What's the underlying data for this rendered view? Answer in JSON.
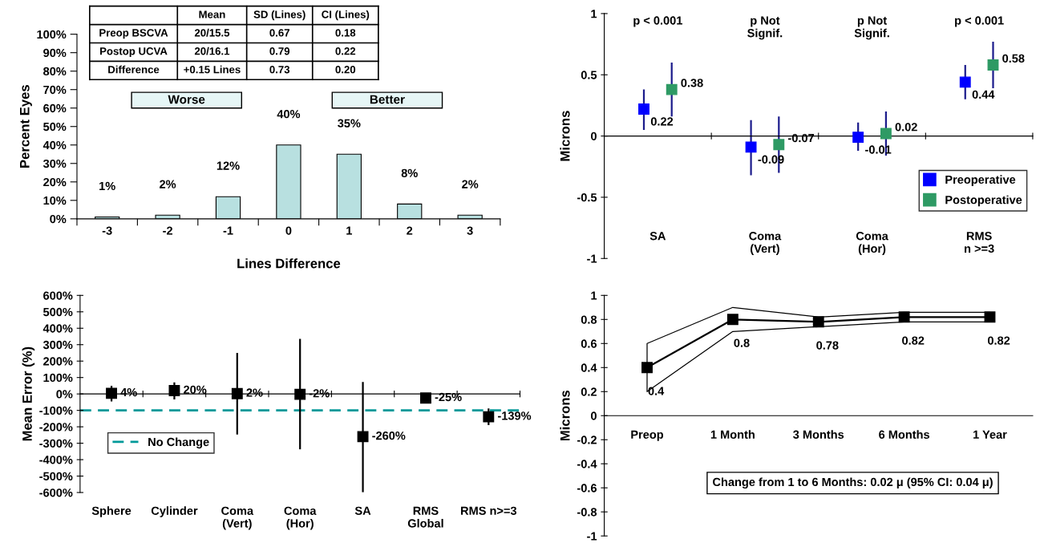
{
  "chart_data": [
    {
      "type": "bar",
      "categories": [
        "-3",
        "-2",
        "-1",
        "0",
        "1",
        "2",
        "3"
      ],
      "values": [
        1,
        2,
        12,
        40,
        35,
        8,
        2
      ],
      "color": "#b8e0e0",
      "value_labels": [
        "1%",
        "2%",
        "12%",
        "40%",
        "35%",
        "8%",
        "2%"
      ],
      "ylim": [
        0,
        100
      ],
      "yticks": [
        {
          "value": 0,
          "label": "0%"
        },
        {
          "value": 10,
          "label": "10%"
        },
        {
          "value": 20,
          "label": "20%"
        },
        {
          "value": 30,
          "label": "30%"
        },
        {
          "value": 40,
          "label": "40%"
        },
        {
          "value": 50,
          "label": "50%"
        },
        {
          "value": 60,
          "label": "60%"
        },
        {
          "value": 70,
          "label": "70%"
        },
        {
          "value": 80,
          "label": "80%"
        },
        {
          "value": 90,
          "label": "90%"
        },
        {
          "value": 100,
          "label": "100%"
        }
      ],
      "xlabel": "Lines Difference",
      "ylabel": "Percent Eyes",
      "annotations": [
        "Mean",
        "SD (Lines)",
        "CI (Lines)",
        "Preop BSCVA",
        "20/15.5",
        "0.67",
        "0.18",
        "Postop UCVA",
        "20/16.1",
        "0.79",
        "0.22",
        "Difference",
        "+0.15 Lines",
        "0.73",
        "0.20",
        "Worse",
        "Better"
      ]
    },
    {
      "type": "scatter",
      "categories": [
        "SA",
        "Coma\n(Vert)",
        "Coma\n(Hor)",
        "RMS\nn >=3"
      ],
      "series": [
        {
          "name": "Preoperative",
          "color": "#0000ff",
          "values": [
            0.22,
            -0.09,
            -0.01,
            0.44
          ],
          "errors": [
            [
              0.05,
              0.38
            ],
            [
              -0.32,
              0.13
            ],
            [
              -0.12,
              0.11
            ],
            [
              0.3,
              0.58
            ]
          ]
        },
        {
          "name": "Postoperative",
          "color": "#2e9a64",
          "values": [
            0.38,
            -0.07,
            0.02,
            0.58
          ],
          "errors": [
            [
              0.16,
              0.6
            ],
            [
              -0.3,
              0.16
            ],
            [
              -0.16,
              0.2
            ],
            [
              0.39,
              0.77
            ]
          ]
        }
      ],
      "ylim": [
        -1,
        1
      ],
      "yticks": [
        -1,
        -0.5,
        0,
        0.5,
        1
      ],
      "ylabel": "Microns",
      "annotations": [
        "p < 0.001",
        "p Not\nSignif.",
        "p Not\nSignif.",
        "p < 0.001"
      ],
      "data_labels": true,
      "legend": "bottom right",
      "marker": "square"
    },
    {
      "type": "scatter",
      "categories": [
        "Sphere",
        "Cylinder",
        "Coma\n(Vert)",
        "Coma\n(Hor)",
        "SA",
        "RMS\nGlobal",
        "RMS n>=3"
      ],
      "values": [
        4,
        20,
        2,
        -2,
        -260,
        -25,
        -139
      ],
      "color": "#000000",
      "errors": [
        [
          -45,
          50
        ],
        [
          -33,
          70
        ],
        [
          -247,
          250
        ],
        [
          -337,
          335
        ],
        [
          -598,
          73
        ],
        null,
        [
          -190,
          -88
        ]
      ],
      "value_labels": [
        "4%",
        "20%",
        "2%",
        "-2%",
        "-260%",
        "-25%",
        "-139%"
      ],
      "ylim": [
        -600,
        600
      ],
      "yticks": [
        {
          "value": -600,
          "label": "-600%"
        },
        {
          "value": -500,
          "label": "-500%"
        },
        {
          "value": -400,
          "label": "-400%"
        },
        {
          "value": -300,
          "label": "-300%"
        },
        {
          "value": -200,
          "label": "-200%"
        },
        {
          "value": -100,
          "label": "-100%"
        },
        {
          "value": 0,
          "label": "0%"
        },
        {
          "value": 100,
          "label": "100%"
        },
        {
          "value": 200,
          "label": "200%"
        },
        {
          "value": 300,
          "label": "300%"
        },
        {
          "value": 400,
          "label": "400%"
        },
        {
          "value": 500,
          "label": "500%"
        },
        {
          "value": 600,
          "label": "600%"
        }
      ],
      "ylabel": "Mean Error (%)",
      "ref_lines": [
        {
          "axis": "y",
          "value": -100,
          "label": "No Change",
          "color": "#009999",
          "line_style": "dashed"
        }
      ],
      "legend": "bottom left",
      "marker": "square"
    },
    {
      "type": "line",
      "categories": [
        "Preop",
        "1 Month",
        "3 Months",
        "6 Months",
        "1 Year"
      ],
      "series": [
        {
          "color": "#000000",
          "values": [
            0.4,
            0.8,
            0.78,
            0.82,
            0.82
          ],
          "lower": [
            0.2,
            0.7,
            0.74,
            0.78,
            0.78
          ],
          "upper": [
            0.6,
            0.9,
            0.82,
            0.86,
            0.86
          ]
        }
      ],
      "ylim": [
        -1,
        1
      ],
      "yticks": [
        -1,
        -0.8,
        -0.6,
        -0.4,
        -0.2,
        0,
        0.2,
        0.4,
        0.6,
        0.8,
        1
      ],
      "ylabel": "Microns",
      "annotations": [
        "Change from 1 to 6 Months: 0.02 μ (95% CI: 0.04 μ)"
      ],
      "data_labels": true,
      "marker": "square"
    }
  ]
}
